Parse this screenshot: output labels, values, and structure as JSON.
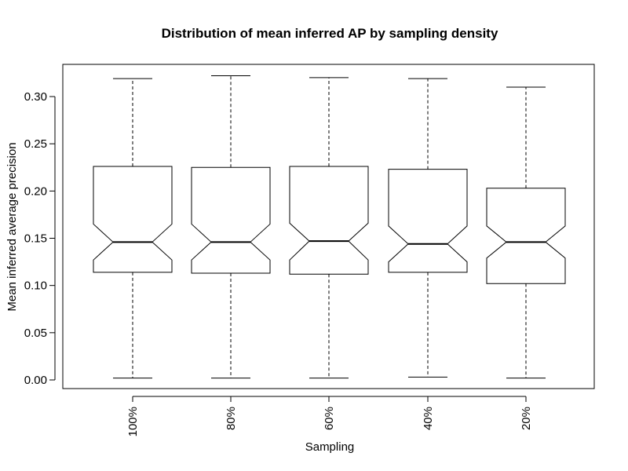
{
  "chart_data": {
    "type": "boxplot",
    "notched": true,
    "title": "Distribution of mean inferred AP by sampling density",
    "xlabel": "Sampling",
    "ylabel": "Mean inferred average precision",
    "ylim": [
      -0.01,
      0.335
    ],
    "yticks": [
      "0.00",
      "0.05",
      "0.10",
      "0.15",
      "0.20",
      "0.25",
      "0.30"
    ],
    "categories": [
      "100%",
      "80%",
      "60%",
      "40%",
      "20%"
    ],
    "boxes": [
      {
        "label": "100%",
        "min": 0.002,
        "q1": 0.114,
        "median": 0.146,
        "q3": 0.226,
        "max": 0.319,
        "notch_low": 0.127,
        "notch_high": 0.165
      },
      {
        "label": "80%",
        "min": 0.002,
        "q1": 0.113,
        "median": 0.146,
        "q3": 0.225,
        "max": 0.322,
        "notch_low": 0.127,
        "notch_high": 0.165
      },
      {
        "label": "60%",
        "min": 0.002,
        "q1": 0.112,
        "median": 0.147,
        "q3": 0.226,
        "max": 0.32,
        "notch_low": 0.127,
        "notch_high": 0.166
      },
      {
        "label": "40%",
        "min": 0.003,
        "q1": 0.114,
        "median": 0.144,
        "q3": 0.223,
        "max": 0.319,
        "notch_low": 0.125,
        "notch_high": 0.163
      },
      {
        "label": "20%",
        "min": 0.002,
        "q1": 0.102,
        "median": 0.146,
        "q3": 0.203,
        "max": 0.31,
        "notch_low": 0.129,
        "notch_high": 0.163
      }
    ]
  }
}
